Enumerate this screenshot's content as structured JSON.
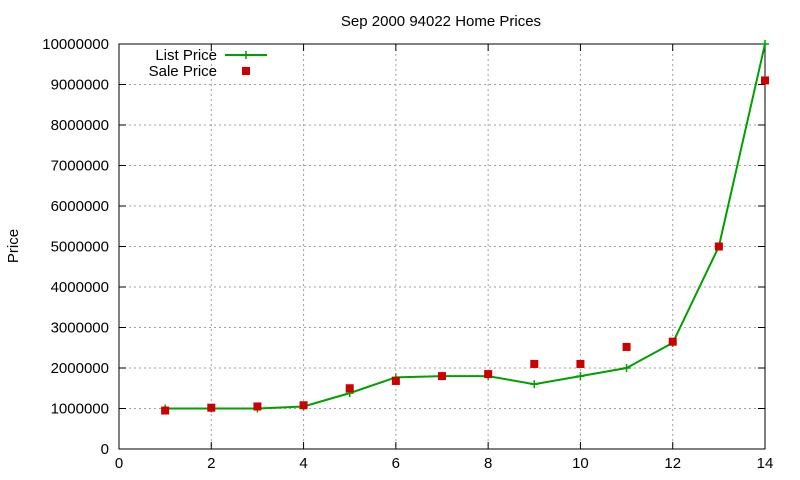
{
  "chart_data": {
    "type": "line",
    "title": "Sep 2000 94022 Home Prices",
    "xlabel": "",
    "ylabel": "Price",
    "xlim": [
      0,
      14
    ],
    "ylim": [
      0,
      10000000
    ],
    "x_ticks": [
      0,
      2,
      4,
      6,
      8,
      10,
      12,
      14
    ],
    "y_ticks": [
      0,
      1000000,
      2000000,
      3000000,
      4000000,
      5000000,
      6000000,
      7000000,
      8000000,
      9000000,
      10000000
    ],
    "grid": true,
    "legend_position": "top-left",
    "series": [
      {
        "name": "List Price",
        "style": "line-plus",
        "color": "#00a000",
        "x": [
          1,
          2,
          3,
          4,
          5,
          6,
          7,
          8,
          9,
          10,
          11,
          12,
          13,
          14
        ],
        "values": [
          1000000,
          1000000,
          1000000,
          1050000,
          1380000,
          1770000,
          1800000,
          1800000,
          1600000,
          1800000,
          2000000,
          2620000,
          5000000,
          10000000
        ]
      },
      {
        "name": "Sale Price",
        "style": "square-points",
        "color": "#cc0000",
        "x": [
          1,
          2,
          3,
          4,
          5,
          6,
          7,
          8,
          9,
          10,
          11,
          12,
          13,
          14
        ],
        "values": [
          950000,
          1020000,
          1050000,
          1080000,
          1500000,
          1680000,
          1800000,
          1850000,
          2100000,
          2100000,
          2520000,
          2650000,
          5000000,
          9100000
        ]
      }
    ]
  }
}
